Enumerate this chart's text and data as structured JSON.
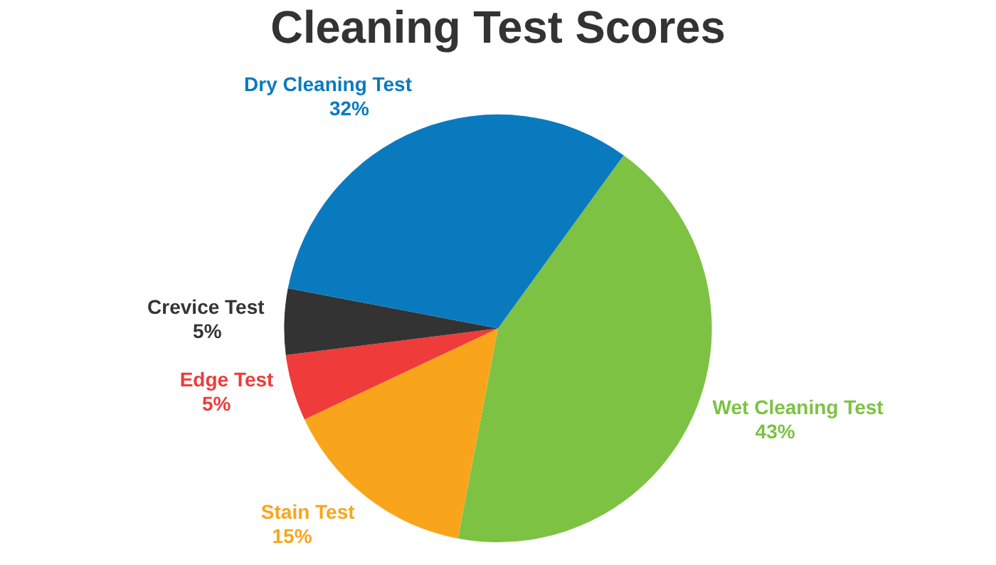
{
  "chart_data": {
    "type": "pie",
    "title": "Cleaning Test Scores",
    "categories": [
      "Wet Cleaning Test",
      "Stain Test",
      "Edge Test",
      "Crevice Test",
      "Dry Cleaning Test"
    ],
    "values": [
      43,
      15,
      5,
      5,
      32
    ],
    "colors": [
      "#7dc243",
      "#f9a51b",
      "#ef3b39",
      "#333333",
      "#0a7abf"
    ],
    "value_labels": [
      "43%",
      "15%",
      "5%",
      "5%",
      "32%"
    ],
    "legend": false
  }
}
